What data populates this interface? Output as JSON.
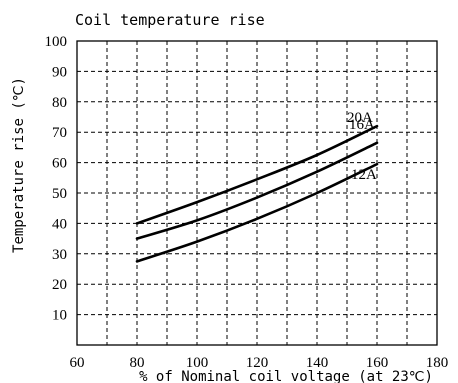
{
  "chart_data": {
    "type": "line",
    "title": "Coil temperature rise",
    "xlabel": "% of Nominal coil voltage (at 23℃)",
    "ylabel": "Temperature rise (℃)",
    "xlim": [
      60,
      180
    ],
    "ylim": [
      0,
      100
    ],
    "x_ticks": [
      60,
      80,
      100,
      120,
      140,
      160,
      180
    ],
    "y_ticks": [
      10,
      20,
      30,
      40,
      50,
      60,
      70,
      80,
      90,
      100
    ],
    "grid": true,
    "series": [
      {
        "name": "20A",
        "x": [
          80,
          100,
          120,
          140,
          160
        ],
        "y": [
          40,
          47,
          54.5,
          62.5,
          72
        ]
      },
      {
        "name": "16A",
        "x": [
          80,
          100,
          120,
          140,
          160
        ],
        "y": [
          35,
          41,
          48.5,
          57,
          66.5
        ]
      },
      {
        "name": "12A",
        "x": [
          80,
          100,
          120,
          140,
          160
        ],
        "y": [
          27.5,
          34,
          41.5,
          50,
          59.5
        ]
      }
    ]
  }
}
